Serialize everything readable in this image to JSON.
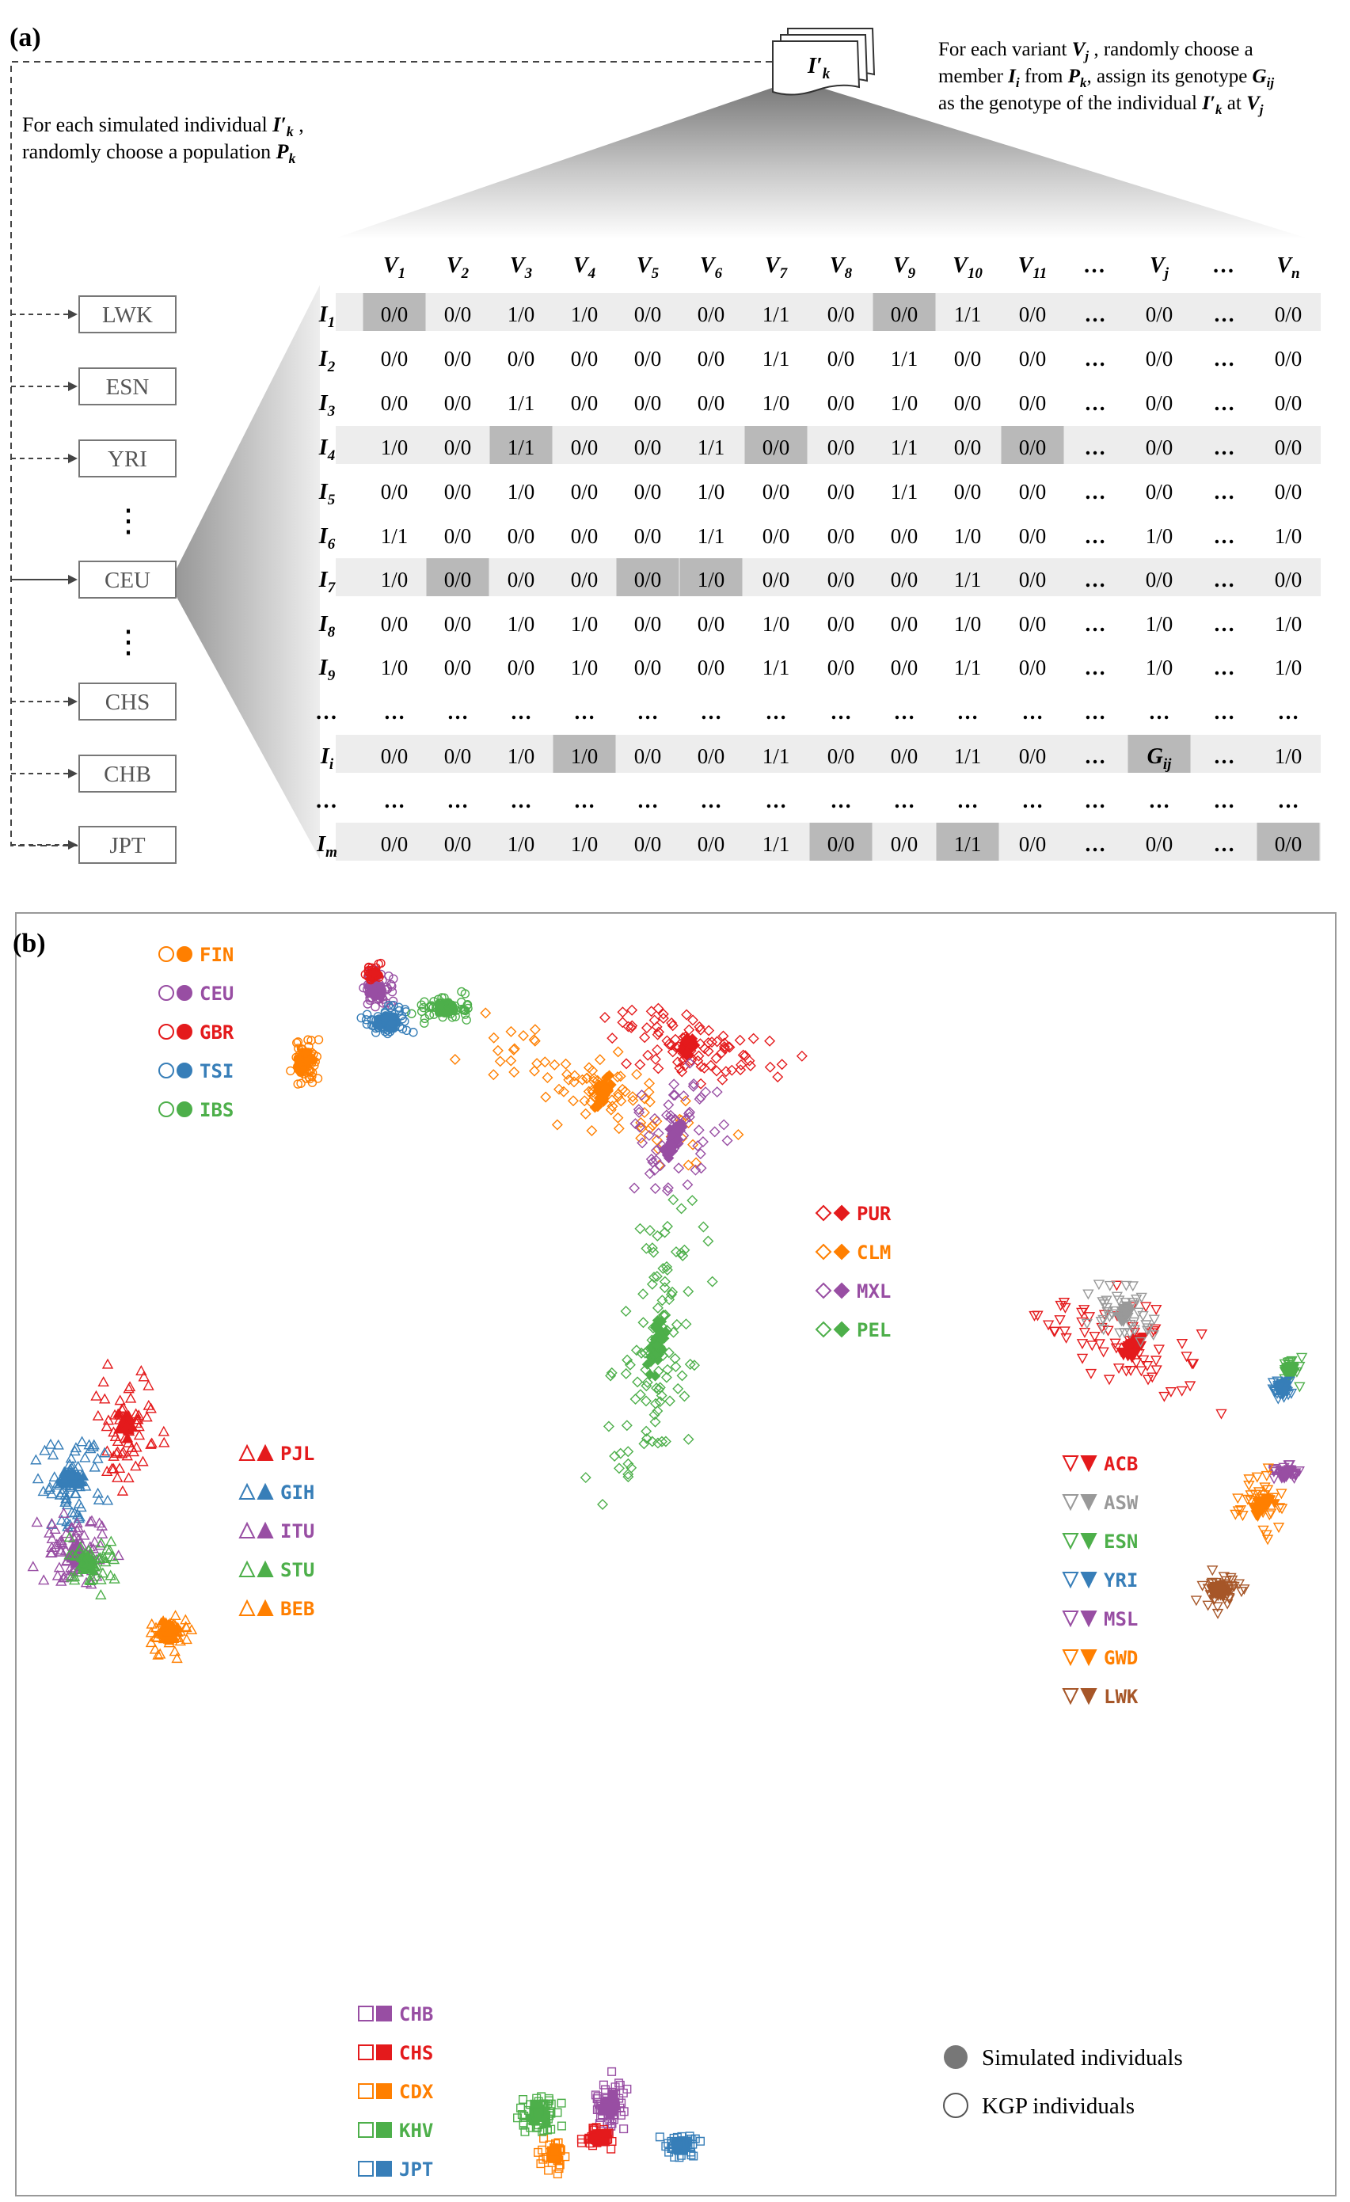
{
  "panel_a": {
    "label": "(a)",
    "ann_left_1": "For each simulated individual ",
    "ann_left_1_var": "I′",
    "ann_left_1_sub": "k",
    "ann_left_1_end": " ,",
    "ann_left_2": "randomly choose a population ",
    "ann_left_2_var": "P",
    "ann_left_2_sub": "k",
    "ann_right_1": "For each variant ",
    "ann_right_1_var": "V",
    "ann_right_1_sub": "j",
    "ann_right_1_end": " , randomly choose a",
    "ann_right_2_a": "member ",
    "ann_right_2_var1": "I",
    "ann_right_2_sub1": "i",
    "ann_right_2_b": " from ",
    "ann_right_2_var2": "P",
    "ann_right_2_sub2": "k",
    "ann_right_2_c": ", assign its genotype ",
    "ann_right_2_var3": "G",
    "ann_right_2_sub3": "ij",
    "ann_right_3_a": "as the genotype of the individual ",
    "ann_right_3_var1": "I′",
    "ann_right_3_sub1": "k",
    "ann_right_3_b": " at ",
    "ann_right_3_var2": "V",
    "ann_right_3_sub2": "j",
    "doc_label": "I′",
    "doc_sub": "k",
    "populations": [
      "LWK",
      "ESN",
      "YRI",
      "⋮",
      "CEU",
      "⋮",
      "CHS",
      "CHB",
      "JPT"
    ],
    "columns": [
      {
        "v": "V",
        "s": "1"
      },
      {
        "v": "V",
        "s": "2"
      },
      {
        "v": "V",
        "s": "3"
      },
      {
        "v": "V",
        "s": "4"
      },
      {
        "v": "V",
        "s": "5"
      },
      {
        "v": "V",
        "s": "6"
      },
      {
        "v": "V",
        "s": "7"
      },
      {
        "v": "V",
        "s": "8"
      },
      {
        "v": "V",
        "s": "9"
      },
      {
        "v": "V",
        "s": "10"
      },
      {
        "v": "V",
        "s": "11"
      },
      {
        "v": "…",
        "s": ""
      },
      {
        "v": "V",
        "s": "j"
      },
      {
        "v": "…",
        "s": ""
      },
      {
        "v": "V",
        "s": "n"
      }
    ],
    "rows": [
      {
        "v": "I",
        "s": "1",
        "cells": [
          "0/0",
          "0/0",
          "1/0",
          "1/0",
          "0/0",
          "0/0",
          "1/1",
          "0/0",
          "0/0",
          "1/1",
          "0/0",
          "…",
          "0/0",
          "…",
          "0/0"
        ],
        "hl": [
          0,
          8
        ]
      },
      {
        "v": "I",
        "s": "2",
        "cells": [
          "0/0",
          "0/0",
          "0/0",
          "0/0",
          "0/0",
          "0/0",
          "1/1",
          "0/0",
          "1/1",
          "0/0",
          "0/0",
          "…",
          "0/0",
          "…",
          "0/0"
        ],
        "hl": []
      },
      {
        "v": "I",
        "s": "3",
        "cells": [
          "0/0",
          "0/0",
          "1/1",
          "0/0",
          "0/0",
          "0/0",
          "1/0",
          "0/0",
          "1/0",
          "0/0",
          "0/0",
          "…",
          "0/0",
          "…",
          "0/0"
        ],
        "hl": []
      },
      {
        "v": "I",
        "s": "4",
        "cells": [
          "1/0",
          "0/0",
          "1/1",
          "0/0",
          "0/0",
          "1/1",
          "0/0",
          "0/0",
          "1/1",
          "0/0",
          "0/0",
          "…",
          "0/0",
          "…",
          "0/0"
        ],
        "hl": [
          2,
          6,
          10
        ]
      },
      {
        "v": "I",
        "s": "5",
        "cells": [
          "0/0",
          "0/0",
          "1/0",
          "0/0",
          "0/0",
          "1/0",
          "0/0",
          "0/0",
          "1/1",
          "0/0",
          "0/0",
          "…",
          "0/0",
          "…",
          "0/0"
        ],
        "hl": []
      },
      {
        "v": "I",
        "s": "6",
        "cells": [
          "1/1",
          "0/0",
          "0/0",
          "0/0",
          "0/0",
          "1/1",
          "0/0",
          "0/0",
          "0/0",
          "1/0",
          "0/0",
          "…",
          "1/0",
          "…",
          "1/0"
        ],
        "hl": []
      },
      {
        "v": "I",
        "s": "7",
        "cells": [
          "1/0",
          "0/0",
          "0/0",
          "0/0",
          "0/0",
          "1/0",
          "0/0",
          "0/0",
          "0/0",
          "1/1",
          "0/0",
          "…",
          "0/0",
          "…",
          "0/0"
        ],
        "hl": [
          1,
          4,
          5
        ]
      },
      {
        "v": "I",
        "s": "8",
        "cells": [
          "0/0",
          "0/0",
          "1/0",
          "1/0",
          "0/0",
          "0/0",
          "1/0",
          "0/0",
          "0/0",
          "1/0",
          "0/0",
          "…",
          "1/0",
          "…",
          "1/0"
        ],
        "hl": []
      },
      {
        "v": "I",
        "s": "9",
        "cells": [
          "1/0",
          "0/0",
          "0/0",
          "1/0",
          "0/0",
          "0/0",
          "1/1",
          "0/0",
          "0/0",
          "1/1",
          "0/0",
          "…",
          "1/0",
          "…",
          "1/0"
        ],
        "hl": []
      },
      {
        "v": "…",
        "s": "",
        "cells": [
          "…",
          "…",
          "…",
          "…",
          "…",
          "…",
          "…",
          "…",
          "…",
          "…",
          "…",
          "…",
          "…",
          "…",
          "…"
        ],
        "hl": []
      },
      {
        "v": "I",
        "s": "i",
        "cells": [
          "0/0",
          "0/0",
          "1/0",
          "1/0",
          "0/0",
          "0/0",
          "1/1",
          "0/0",
          "0/0",
          "1/1",
          "0/0",
          "…",
          "G",
          "…",
          "1/0"
        ],
        "hl": [
          3,
          12
        ],
        "gsub": "ij"
      },
      {
        "v": "…",
        "s": "",
        "cells": [
          "…",
          "…",
          "…",
          "…",
          "…",
          "…",
          "…",
          "…",
          "…",
          "…",
          "…",
          "…",
          "…",
          "…",
          "…"
        ],
        "hl": []
      },
      {
        "v": "I",
        "s": "m",
        "cells": [
          "0/0",
          "0/0",
          "1/0",
          "1/0",
          "0/0",
          "0/0",
          "1/1",
          "0/0",
          "0/0",
          "1/1",
          "0/0",
          "…",
          "0/0",
          "…",
          "0/0"
        ],
        "hl": [
          7,
          9,
          14
        ]
      }
    ]
  },
  "panel_b": {
    "label": "(b)",
    "colors": {
      "red": "#e41a1c",
      "orange": "#ff7f00",
      "purple": "#984ea3",
      "blue": "#377eb8",
      "green": "#4daf4a",
      "grey": "#999999",
      "brown": "#a65628"
    },
    "legend_groups": [
      {
        "shape": "circle",
        "items": [
          {
            "code": "FIN",
            "color": "orange"
          },
          {
            "code": "CEU",
            "color": "purple"
          },
          {
            "code": "GBR",
            "color": "red"
          },
          {
            "code": "TSI",
            "color": "blue"
          },
          {
            "code": "IBS",
            "color": "green"
          }
        ]
      },
      {
        "shape": "diamond",
        "items": [
          {
            "code": "PUR",
            "color": "red"
          },
          {
            "code": "CLM",
            "color": "orange"
          },
          {
            "code": "MXL",
            "color": "purple"
          },
          {
            "code": "PEL",
            "color": "green"
          }
        ]
      },
      {
        "shape": "triangle",
        "items": [
          {
            "code": "PJL",
            "color": "red"
          },
          {
            "code": "GIH",
            "color": "blue"
          },
          {
            "code": "ITU",
            "color": "purple"
          },
          {
            "code": "STU",
            "color": "green"
          },
          {
            "code": "BEB",
            "color": "orange"
          }
        ]
      },
      {
        "shape": "tridown",
        "items": [
          {
            "code": "ACB",
            "color": "red"
          },
          {
            "code": "ASW",
            "color": "grey"
          },
          {
            "code": "ESN",
            "color": "green"
          },
          {
            "code": "YRI",
            "color": "blue"
          },
          {
            "code": "MSL",
            "color": "purple"
          },
          {
            "code": "GWD",
            "color": "orange"
          },
          {
            "code": "LWK",
            "color": "brown"
          }
        ]
      },
      {
        "shape": "square",
        "items": [
          {
            "code": "CHB",
            "color": "purple"
          },
          {
            "code": "CHS",
            "color": "red"
          },
          {
            "code": "CDX",
            "color": "orange"
          },
          {
            "code": "KHV",
            "color": "green"
          },
          {
            "code": "JPT",
            "color": "blue"
          }
        ]
      }
    ],
    "key_simulated": "Simulated individuals",
    "key_kgp": "KGP individuals"
  }
}
